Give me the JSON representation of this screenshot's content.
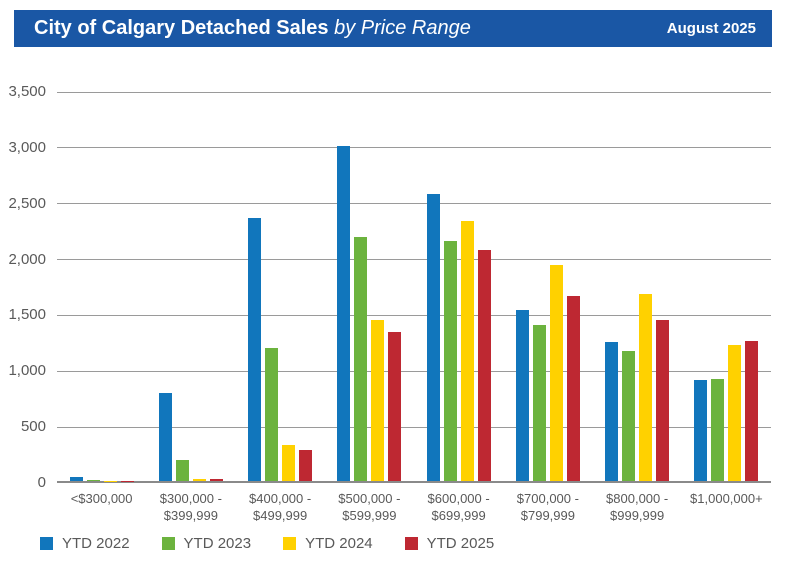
{
  "header": {
    "title_bold": "City of Calgary Detached Sales",
    "title_italic": " by Price Range",
    "date_label": "August 2025",
    "bg_color": "#1A57A5"
  },
  "chart_data": {
    "type": "bar",
    "title": "City of Calgary Detached Sales by Price Range",
    "subtitle": "August 2025",
    "categories": [
      "<$300,000",
      "$300,000 - $399,999",
      "$400,000 - $499,999",
      "$500,000 - $599,999",
      "$600,000 - $699,999",
      "$700,000 - $799,999",
      "$800,000 - $999,999",
      "$1,000,000+"
    ],
    "series": [
      {
        "name": "YTD 2022",
        "color": "#1176BC",
        "values": [
          40,
          790,
          2350,
          3000,
          2570,
          1530,
          1240,
          900
        ]
      },
      {
        "name": "YTD 2023",
        "color": "#6CB33E",
        "values": [
          5,
          190,
          1190,
          2180,
          2150,
          1400,
          1160,
          910
        ]
      },
      {
        "name": "YTD 2024",
        "color": "#FFD100",
        "values": [
          2,
          20,
          320,
          1440,
          2330,
          1930,
          1670,
          1220
        ]
      },
      {
        "name": "YTD 2025",
        "color": "#BE2832",
        "values": [
          2,
          20,
          280,
          1330,
          2070,
          1660,
          1440,
          1250
        ]
      }
    ],
    "xlabel": "",
    "ylabel": "",
    "ylim": [
      0,
      3500
    ],
    "ytick_step": 500,
    "ytick_labels": [
      "0",
      "500",
      "1,000",
      "1,500",
      "2,000",
      "2,500",
      "3,000",
      "3,500"
    ],
    "grid": true,
    "legend_position": "bottom-left",
    "colors": {
      "axis_text": "#595959",
      "gridline": "#9a9a9a",
      "baseline": "#8a8a8a"
    }
  }
}
